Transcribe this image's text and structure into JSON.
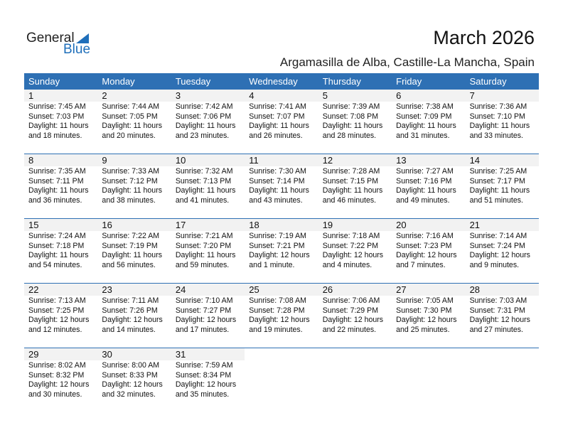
{
  "logo": {
    "line1": "General",
    "line2": "Blue",
    "color": "#1f6fba"
  },
  "title": "March 2026",
  "location": "Argamasilla de Alba, Castille-La Mancha, Spain",
  "colors": {
    "header": "#2e70b4",
    "day_band": "#f2f2f2"
  },
  "weekdays": [
    "Sunday",
    "Monday",
    "Tuesday",
    "Wednesday",
    "Thursday",
    "Friday",
    "Saturday"
  ],
  "days": [
    {
      "day": "1",
      "sunrise": "Sunrise: 7:45 AM",
      "sunset": "Sunset: 7:03 PM",
      "daylight1": "Daylight: 11 hours",
      "daylight2": "and 18 minutes."
    },
    {
      "day": "2",
      "sunrise": "Sunrise: 7:44 AM",
      "sunset": "Sunset: 7:05 PM",
      "daylight1": "Daylight: 11 hours",
      "daylight2": "and 20 minutes."
    },
    {
      "day": "3",
      "sunrise": "Sunrise: 7:42 AM",
      "sunset": "Sunset: 7:06 PM",
      "daylight1": "Daylight: 11 hours",
      "daylight2": "and 23 minutes."
    },
    {
      "day": "4",
      "sunrise": "Sunrise: 7:41 AM",
      "sunset": "Sunset: 7:07 PM",
      "daylight1": "Daylight: 11 hours",
      "daylight2": "and 26 minutes."
    },
    {
      "day": "5",
      "sunrise": "Sunrise: 7:39 AM",
      "sunset": "Sunset: 7:08 PM",
      "daylight1": "Daylight: 11 hours",
      "daylight2": "and 28 minutes."
    },
    {
      "day": "6",
      "sunrise": "Sunrise: 7:38 AM",
      "sunset": "Sunset: 7:09 PM",
      "daylight1": "Daylight: 11 hours",
      "daylight2": "and 31 minutes."
    },
    {
      "day": "7",
      "sunrise": "Sunrise: 7:36 AM",
      "sunset": "Sunset: 7:10 PM",
      "daylight1": "Daylight: 11 hours",
      "daylight2": "and 33 minutes."
    },
    {
      "day": "8",
      "sunrise": "Sunrise: 7:35 AM",
      "sunset": "Sunset: 7:11 PM",
      "daylight1": "Daylight: 11 hours",
      "daylight2": "and 36 minutes."
    },
    {
      "day": "9",
      "sunrise": "Sunrise: 7:33 AM",
      "sunset": "Sunset: 7:12 PM",
      "daylight1": "Daylight: 11 hours",
      "daylight2": "and 38 minutes."
    },
    {
      "day": "10",
      "sunrise": "Sunrise: 7:32 AM",
      "sunset": "Sunset: 7:13 PM",
      "daylight1": "Daylight: 11 hours",
      "daylight2": "and 41 minutes."
    },
    {
      "day": "11",
      "sunrise": "Sunrise: 7:30 AM",
      "sunset": "Sunset: 7:14 PM",
      "daylight1": "Daylight: 11 hours",
      "daylight2": "and 43 minutes."
    },
    {
      "day": "12",
      "sunrise": "Sunrise: 7:28 AM",
      "sunset": "Sunset: 7:15 PM",
      "daylight1": "Daylight: 11 hours",
      "daylight2": "and 46 minutes."
    },
    {
      "day": "13",
      "sunrise": "Sunrise: 7:27 AM",
      "sunset": "Sunset: 7:16 PM",
      "daylight1": "Daylight: 11 hours",
      "daylight2": "and 49 minutes."
    },
    {
      "day": "14",
      "sunrise": "Sunrise: 7:25 AM",
      "sunset": "Sunset: 7:17 PM",
      "daylight1": "Daylight: 11 hours",
      "daylight2": "and 51 minutes."
    },
    {
      "day": "15",
      "sunrise": "Sunrise: 7:24 AM",
      "sunset": "Sunset: 7:18 PM",
      "daylight1": "Daylight: 11 hours",
      "daylight2": "and 54 minutes."
    },
    {
      "day": "16",
      "sunrise": "Sunrise: 7:22 AM",
      "sunset": "Sunset: 7:19 PM",
      "daylight1": "Daylight: 11 hours",
      "daylight2": "and 56 minutes."
    },
    {
      "day": "17",
      "sunrise": "Sunrise: 7:21 AM",
      "sunset": "Sunset: 7:20 PM",
      "daylight1": "Daylight: 11 hours",
      "daylight2": "and 59 minutes."
    },
    {
      "day": "18",
      "sunrise": "Sunrise: 7:19 AM",
      "sunset": "Sunset: 7:21 PM",
      "daylight1": "Daylight: 12 hours",
      "daylight2": "and 1 minute."
    },
    {
      "day": "19",
      "sunrise": "Sunrise: 7:18 AM",
      "sunset": "Sunset: 7:22 PM",
      "daylight1": "Daylight: 12 hours",
      "daylight2": "and 4 minutes."
    },
    {
      "day": "20",
      "sunrise": "Sunrise: 7:16 AM",
      "sunset": "Sunset: 7:23 PM",
      "daylight1": "Daylight: 12 hours",
      "daylight2": "and 7 minutes."
    },
    {
      "day": "21",
      "sunrise": "Sunrise: 7:14 AM",
      "sunset": "Sunset: 7:24 PM",
      "daylight1": "Daylight: 12 hours",
      "daylight2": "and 9 minutes."
    },
    {
      "day": "22",
      "sunrise": "Sunrise: 7:13 AM",
      "sunset": "Sunset: 7:25 PM",
      "daylight1": "Daylight: 12 hours",
      "daylight2": "and 12 minutes."
    },
    {
      "day": "23",
      "sunrise": "Sunrise: 7:11 AM",
      "sunset": "Sunset: 7:26 PM",
      "daylight1": "Daylight: 12 hours",
      "daylight2": "and 14 minutes."
    },
    {
      "day": "24",
      "sunrise": "Sunrise: 7:10 AM",
      "sunset": "Sunset: 7:27 PM",
      "daylight1": "Daylight: 12 hours",
      "daylight2": "and 17 minutes."
    },
    {
      "day": "25",
      "sunrise": "Sunrise: 7:08 AM",
      "sunset": "Sunset: 7:28 PM",
      "daylight1": "Daylight: 12 hours",
      "daylight2": "and 19 minutes."
    },
    {
      "day": "26",
      "sunrise": "Sunrise: 7:06 AM",
      "sunset": "Sunset: 7:29 PM",
      "daylight1": "Daylight: 12 hours",
      "daylight2": "and 22 minutes."
    },
    {
      "day": "27",
      "sunrise": "Sunrise: 7:05 AM",
      "sunset": "Sunset: 7:30 PM",
      "daylight1": "Daylight: 12 hours",
      "daylight2": "and 25 minutes."
    },
    {
      "day": "28",
      "sunrise": "Sunrise: 7:03 AM",
      "sunset": "Sunset: 7:31 PM",
      "daylight1": "Daylight: 12 hours",
      "daylight2": "and 27 minutes."
    },
    {
      "day": "29",
      "sunrise": "Sunrise: 8:02 AM",
      "sunset": "Sunset: 8:32 PM",
      "daylight1": "Daylight: 12 hours",
      "daylight2": "and 30 minutes."
    },
    {
      "day": "30",
      "sunrise": "Sunrise: 8:00 AM",
      "sunset": "Sunset: 8:33 PM",
      "daylight1": "Daylight: 12 hours",
      "daylight2": "and 32 minutes."
    },
    {
      "day": "31",
      "sunrise": "Sunrise: 7:59 AM",
      "sunset": "Sunset: 8:34 PM",
      "daylight1": "Daylight: 12 hours",
      "daylight2": "and 35 minutes."
    }
  ]
}
